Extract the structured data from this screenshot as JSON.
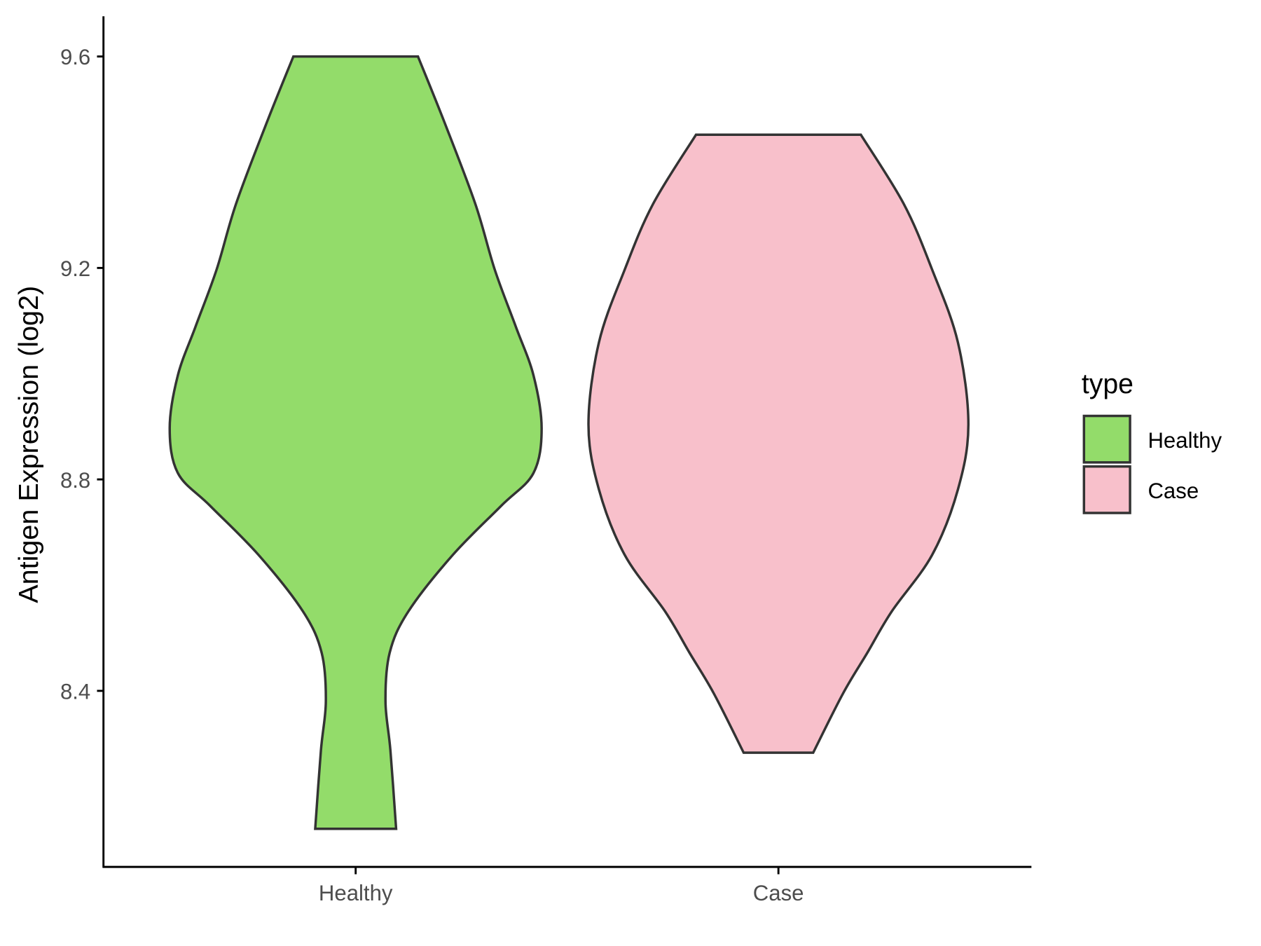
{
  "chart_data": {
    "type": "violin",
    "ylabel": "Antigen Expression (log2)",
    "xlabel": "",
    "categories": [
      "Healthy",
      "Case"
    ],
    "ylim": [
      8.067,
      9.676
    ],
    "yticks": [
      8.4,
      8.8,
      9.2,
      9.6
    ],
    "ytick_labels": [
      "8.4",
      "8.8",
      "9.2",
      "9.6"
    ],
    "grid": false,
    "legend": {
      "title": "type",
      "placement": "right",
      "entries": [
        "Healthy",
        "Case"
      ]
    },
    "series": [
      {
        "name": "Healthy",
        "color": "#93DC6A",
        "min": 8.139,
        "max": 9.6,
        "profile": [
          {
            "y": 9.6,
            "width": 0.328
          },
          {
            "y": 9.475,
            "width": 0.468
          },
          {
            "y": 9.321,
            "width": 0.63
          },
          {
            "y": 9.197,
            "width": 0.732
          },
          {
            "y": 9.089,
            "width": 0.843
          },
          {
            "y": 8.997,
            "width": 0.936
          },
          {
            "y": 8.897,
            "width": 0.979
          },
          {
            "y": 8.812,
            "width": 0.936
          },
          {
            "y": 8.75,
            "width": 0.766
          },
          {
            "y": 8.657,
            "width": 0.511
          },
          {
            "y": 8.55,
            "width": 0.277
          },
          {
            "y": 8.472,
            "width": 0.179
          },
          {
            "y": 8.38,
            "width": 0.157
          },
          {
            "y": 8.287,
            "width": 0.183
          },
          {
            "y": 8.139,
            "width": 0.213
          }
        ]
      },
      {
        "name": "Case",
        "color": "#F8C0CB",
        "min": 8.283,
        "max": 9.452,
        "profile": [
          {
            "y": 9.452,
            "width": 0.434
          },
          {
            "y": 9.321,
            "width": 0.66
          },
          {
            "y": 9.197,
            "width": 0.809
          },
          {
            "y": 9.059,
            "width": 0.945
          },
          {
            "y": 8.904,
            "width": 1.0
          },
          {
            "y": 8.781,
            "width": 0.945
          },
          {
            "y": 8.657,
            "width": 0.809
          },
          {
            "y": 8.55,
            "width": 0.596
          },
          {
            "y": 8.472,
            "width": 0.468
          },
          {
            "y": 8.395,
            "width": 0.34
          },
          {
            "y": 8.283,
            "width": 0.183
          }
        ]
      }
    ],
    "outline_color": "#333333"
  }
}
